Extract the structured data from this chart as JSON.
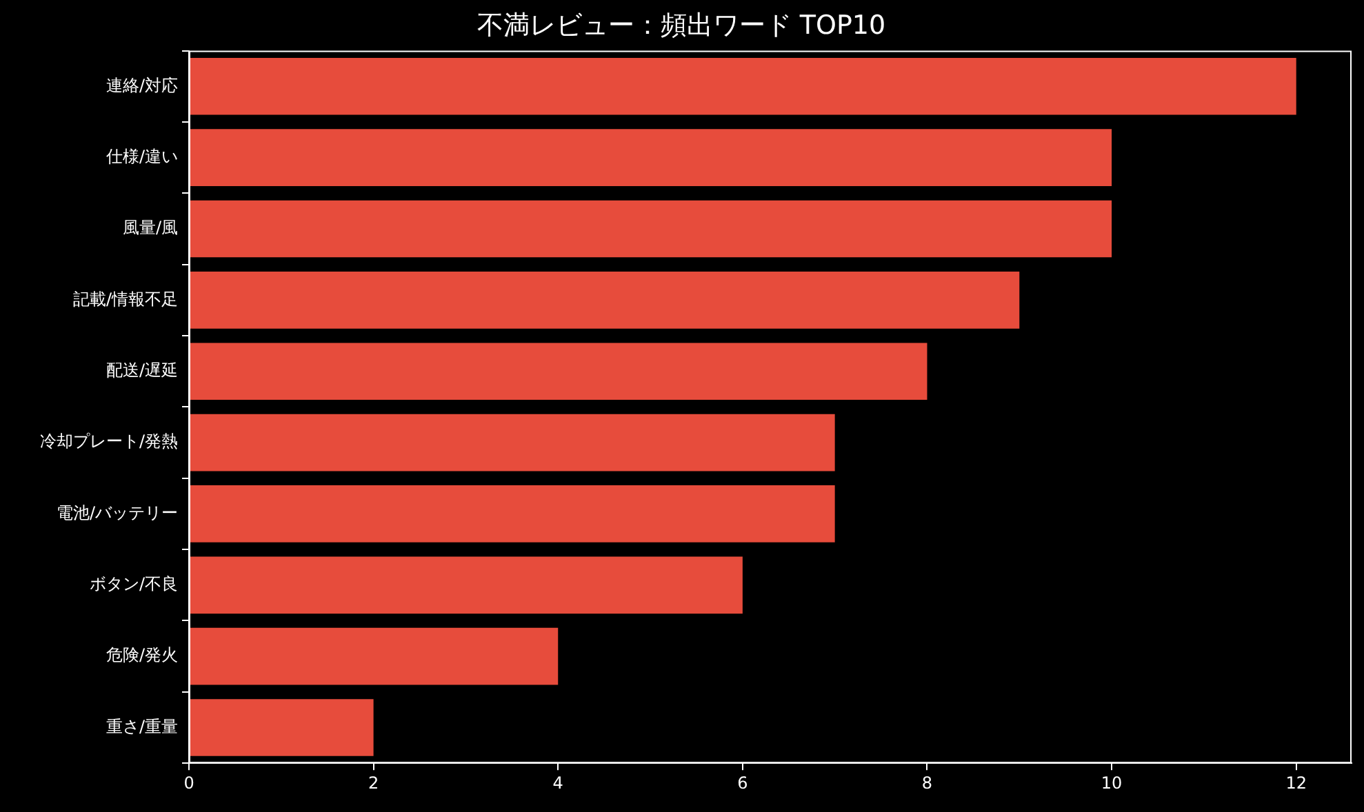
{
  "chart_data": {
    "type": "bar",
    "orientation": "horizontal",
    "title": "不満レビュー：頻出ワード TOP10",
    "categories": [
      "連絡/対応",
      "仕様/違い",
      "風量/風",
      "記載/情報不足",
      "配送/遅延",
      "冷却プレート/発熱",
      "電池/バッテリー",
      "ボタン/不良",
      "危険/発火",
      "重さ/重量"
    ],
    "values": [
      12,
      10,
      10,
      9,
      8,
      7,
      7,
      6,
      4,
      2
    ],
    "color": "#e74c3c",
    "xlim": [
      0,
      12.6
    ],
    "xticks": [
      0,
      2,
      4,
      6,
      8,
      10,
      12
    ],
    "grid": false,
    "legend": false
  }
}
